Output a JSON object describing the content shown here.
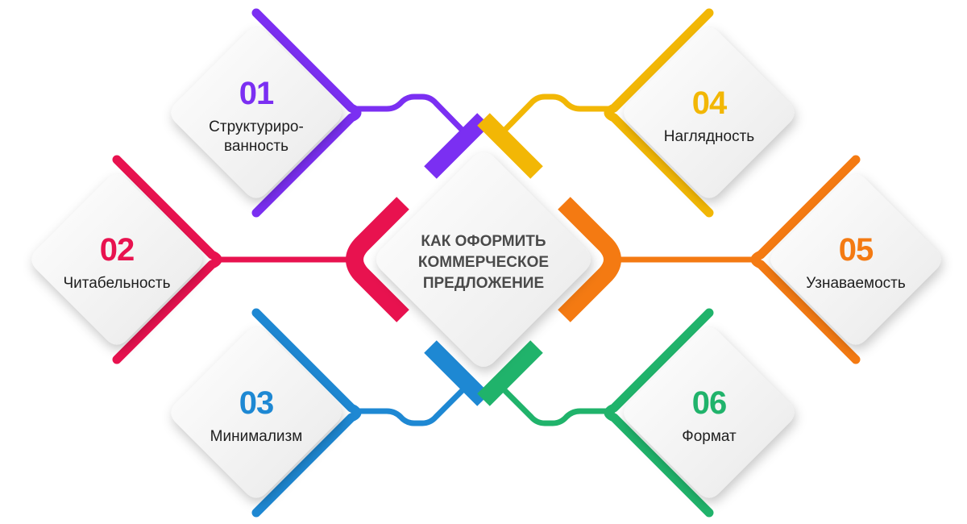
{
  "diagram": {
    "center_title": "КАК ОФОРМИТЬ\nКОММЕРЧЕСКОЕ\nПРЕДЛОЖЕНИЕ",
    "nodes": [
      {
        "id": "n1",
        "number": "01",
        "label": "Структуриро-\nванность",
        "color": "#7b2ff2"
      },
      {
        "id": "n2",
        "number": "02",
        "label": "Читабельность",
        "color": "#e8124f"
      },
      {
        "id": "n3",
        "number": "03",
        "label": "Минимализм",
        "color": "#1e88d3"
      },
      {
        "id": "n4",
        "number": "04",
        "label": "Наглядность",
        "color": "#f2b705"
      },
      {
        "id": "n5",
        "number": "05",
        "label": "Узнаваемость",
        "color": "#f47a12"
      },
      {
        "id": "n6",
        "number": "06",
        "label": "Формат",
        "color": "#20b36b"
      }
    ]
  }
}
